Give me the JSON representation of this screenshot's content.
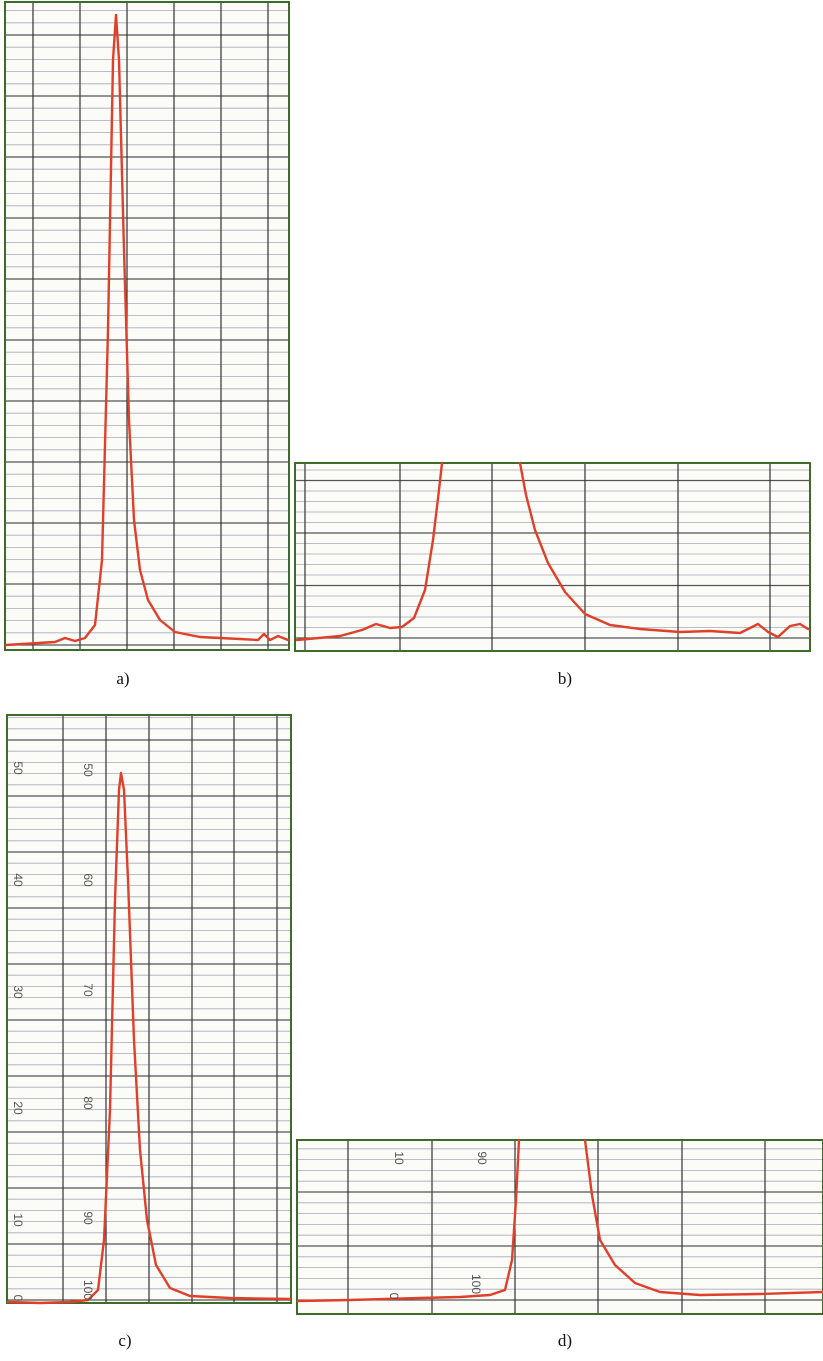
{
  "panels": [
    {
      "label": "a)"
    },
    {
      "label": "b)"
    },
    {
      "label": "c)",
      "scale_left": [
        "50",
        "40",
        "30",
        "20",
        "10",
        "0"
      ],
      "scale_right": [
        "50",
        "60",
        "70",
        "80",
        "90",
        "100"
      ]
    },
    {
      "label": "d)",
      "scale_top": [
        "10",
        "90"
      ],
      "scale_bottom": [
        "0",
        "100"
      ]
    }
  ]
}
